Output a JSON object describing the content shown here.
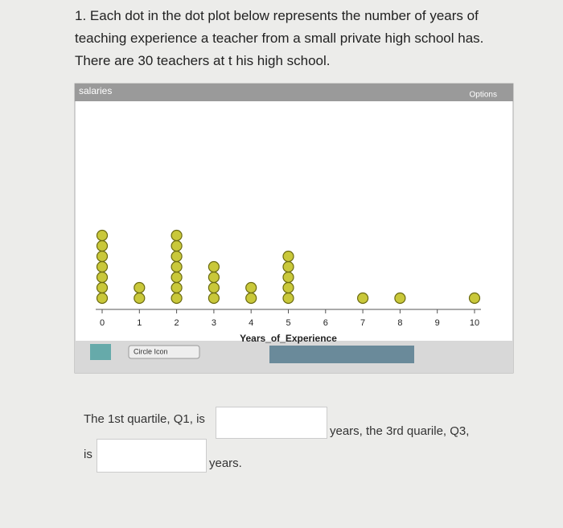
{
  "question": {
    "lines": [
      "1. Each dot in the dot plot below represents the number of years of",
      "teaching experience a teacher from a small private high school has.",
      "There are 30 teachers at t his high school."
    ]
  },
  "panel": {
    "title": "salaries",
    "options": "Options",
    "tool": "Circle Icon"
  },
  "chart_data": {
    "type": "dot",
    "x": [
      0,
      1,
      2,
      3,
      4,
      5,
      7,
      8,
      10
    ],
    "values": [
      7,
      2,
      7,
      4,
      2,
      5,
      1,
      1,
      1
    ],
    "color": "#c9c83a",
    "xlabel": "Years_of_Experience",
    "xlim": [
      0,
      10
    ],
    "xticks": [
      0,
      1,
      2,
      3,
      4,
      5,
      6,
      7,
      8,
      9,
      10
    ]
  },
  "answer": {
    "q1_prefix": "The 1st quartile, Q1, is",
    "q1_suffix": "years, the 3rd quarile, Q3,",
    "q3_prefix": "is",
    "q3_suffix": "years."
  }
}
